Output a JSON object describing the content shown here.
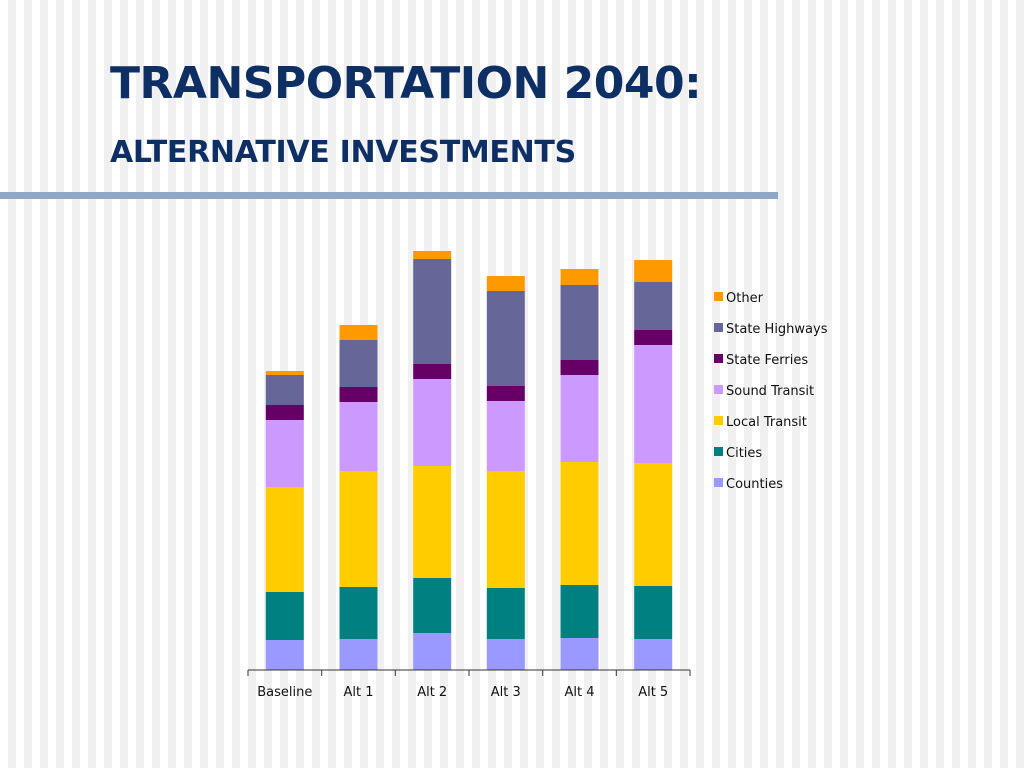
{
  "slide": {
    "title": "TRANSPORTATION 2040:",
    "subtitle": "ALTERNATIVE INVESTMENTS"
  },
  "chart_data": {
    "type": "bar",
    "stacked": true,
    "categories": [
      "Baseline",
      "Alt 1",
      "Alt 2",
      "Alt 3",
      "Alt 4",
      "Alt 5"
    ],
    "series": [
      {
        "name": "Counties",
        "color": "#9999ff",
        "values": [
          30,
          31,
          37,
          31,
          32,
          31
        ]
      },
      {
        "name": "Cities",
        "color": "#008080",
        "values": [
          48,
          52,
          55,
          51,
          53,
          53
        ]
      },
      {
        "name": "Local Transit",
        "color": "#ffcc00",
        "values": [
          105,
          116,
          112,
          117,
          123,
          123
        ]
      },
      {
        "name": "Sound Transit",
        "color": "#cc99ff",
        "values": [
          67,
          69,
          87,
          70,
          87,
          118
        ]
      },
      {
        "name": "State Ferries",
        "color": "#660066",
        "values": [
          15,
          15,
          15,
          15,
          15,
          15
        ]
      },
      {
        "name": "State Highways",
        "color": "#666699",
        "values": [
          30,
          47,
          105,
          95,
          75,
          48
        ]
      },
      {
        "name": "Other",
        "color": "#ff9900",
        "values": [
          4,
          15,
          8,
          15,
          16,
          22
        ]
      }
    ],
    "ylim": [
      0,
      420
    ],
    "grid": false,
    "legend": "right",
    "xlabel": "",
    "ylabel": ""
  }
}
